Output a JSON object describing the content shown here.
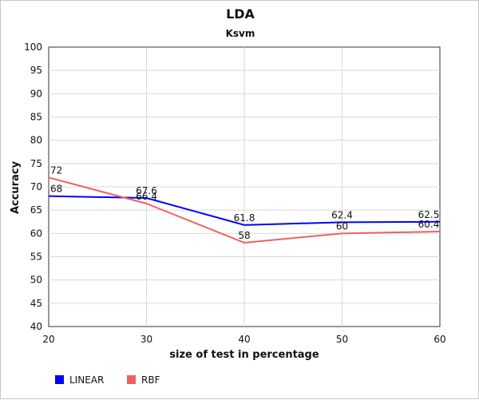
{
  "chart_data": {
    "type": "line",
    "title": "LDA",
    "subtitle": "Ksvm",
    "xlabel": "size of test in percentage",
    "ylabel": "Accuracy",
    "x": [
      20,
      30,
      40,
      50,
      60
    ],
    "xlim": [
      20,
      60
    ],
    "ylim": [
      40,
      100
    ],
    "xticks": [
      20,
      30,
      40,
      50,
      60
    ],
    "yticks": [
      40,
      45,
      50,
      55,
      60,
      65,
      70,
      75,
      80,
      85,
      90,
      95,
      100
    ],
    "grid": true,
    "legend_position": "bottom-left",
    "series": [
      {
        "name": "LINEAR",
        "color": "#0000ff",
        "values": [
          68,
          67.6,
          61.8,
          62.4,
          62.5
        ]
      },
      {
        "name": "RBF",
        "color": "#f06060",
        "values": [
          72,
          66.4,
          58,
          60,
          60.4
        ]
      }
    ]
  }
}
